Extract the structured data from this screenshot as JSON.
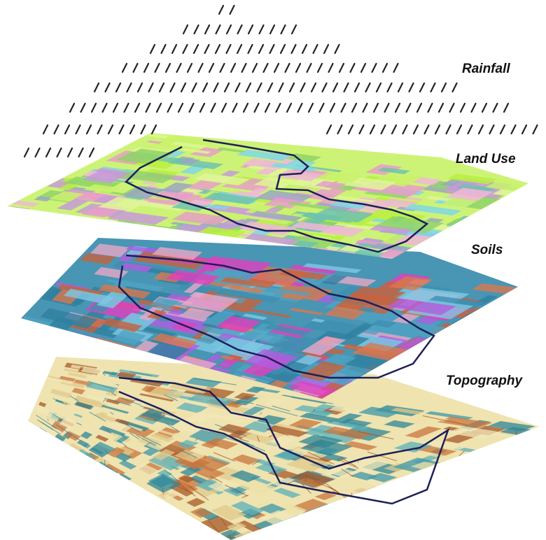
{
  "labels": {
    "rainfall": "Rainfall",
    "land_use": "Land Use",
    "soils": "Soils",
    "topography": "Topography"
  },
  "colors": {
    "rain_dash": "#222222",
    "boundary": "#1c1f5a",
    "landuse_palette": [
      "#c9f26a",
      "#b7f03f",
      "#dff59a",
      "#7fd6e8",
      "#c59ad9",
      "#e89ec8",
      "#9aa6c2",
      "#f0b7d6",
      "#8fd46a",
      "#6fc2ae"
    ],
    "soils_palette": [
      "#3f8fb0",
      "#c8613c",
      "#e8a7c8",
      "#7ec8e3",
      "#e23fbf",
      "#b25de0",
      "#2f7fa0",
      "#d9784f",
      "#4fa3c2"
    ],
    "topo_palette": [
      "#f2e7b8",
      "#3e97a8",
      "#c9763e",
      "#e0c98c",
      "#5bb0b8",
      "#a8582a",
      "#eee0a8",
      "#2e8597"
    ]
  },
  "icons": {
    "rain": "forward-slash-dash"
  }
}
